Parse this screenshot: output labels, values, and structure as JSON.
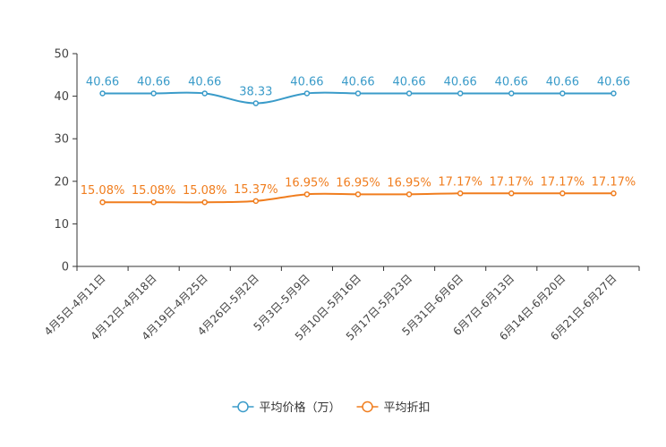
{
  "chart_data": {
    "type": "line",
    "title": "",
    "xlabel": "",
    "ylabel": "",
    "ylim": [
      0,
      50
    ],
    "yticks": [
      0,
      10,
      20,
      30,
      40,
      50
    ],
    "grid": false,
    "legend_position": "bottom-center",
    "categories": [
      "4月5日-4月11日",
      "4月12日-4月18日",
      "4月19日-4月25日",
      "4月26日-5月2日",
      "5月3日-5月9日",
      "5月10日-5月16日",
      "5月17日-5月23日",
      "5月31日-6月6日",
      "6月7日-6月13日",
      "6月14日-6月20日",
      "6月21日-6月27日"
    ],
    "series": [
      {
        "name": "平均价格（万）",
        "color": "#3a9bc9",
        "values": [
          40.66,
          40.66,
          40.66,
          38.33,
          40.66,
          40.66,
          40.66,
          40.66,
          40.66,
          40.66,
          40.66
        ],
        "labels": [
          "40.66",
          "40.66",
          "40.66",
          "38.33",
          "40.66",
          "40.66",
          "40.66",
          "40.66",
          "40.66",
          "40.66",
          "40.66"
        ]
      },
      {
        "name": "平均折扣",
        "color": "#f07d1e",
        "values": [
          15.08,
          15.08,
          15.08,
          15.37,
          16.95,
          16.95,
          16.95,
          17.17,
          17.17,
          17.17,
          17.17
        ],
        "labels": [
          "15.08%",
          "15.08%",
          "15.08%",
          "15.37%",
          "16.95%",
          "16.95%",
          "16.95%",
          "17.17%",
          "17.17%",
          "17.17%",
          "17.17%"
        ]
      }
    ]
  }
}
